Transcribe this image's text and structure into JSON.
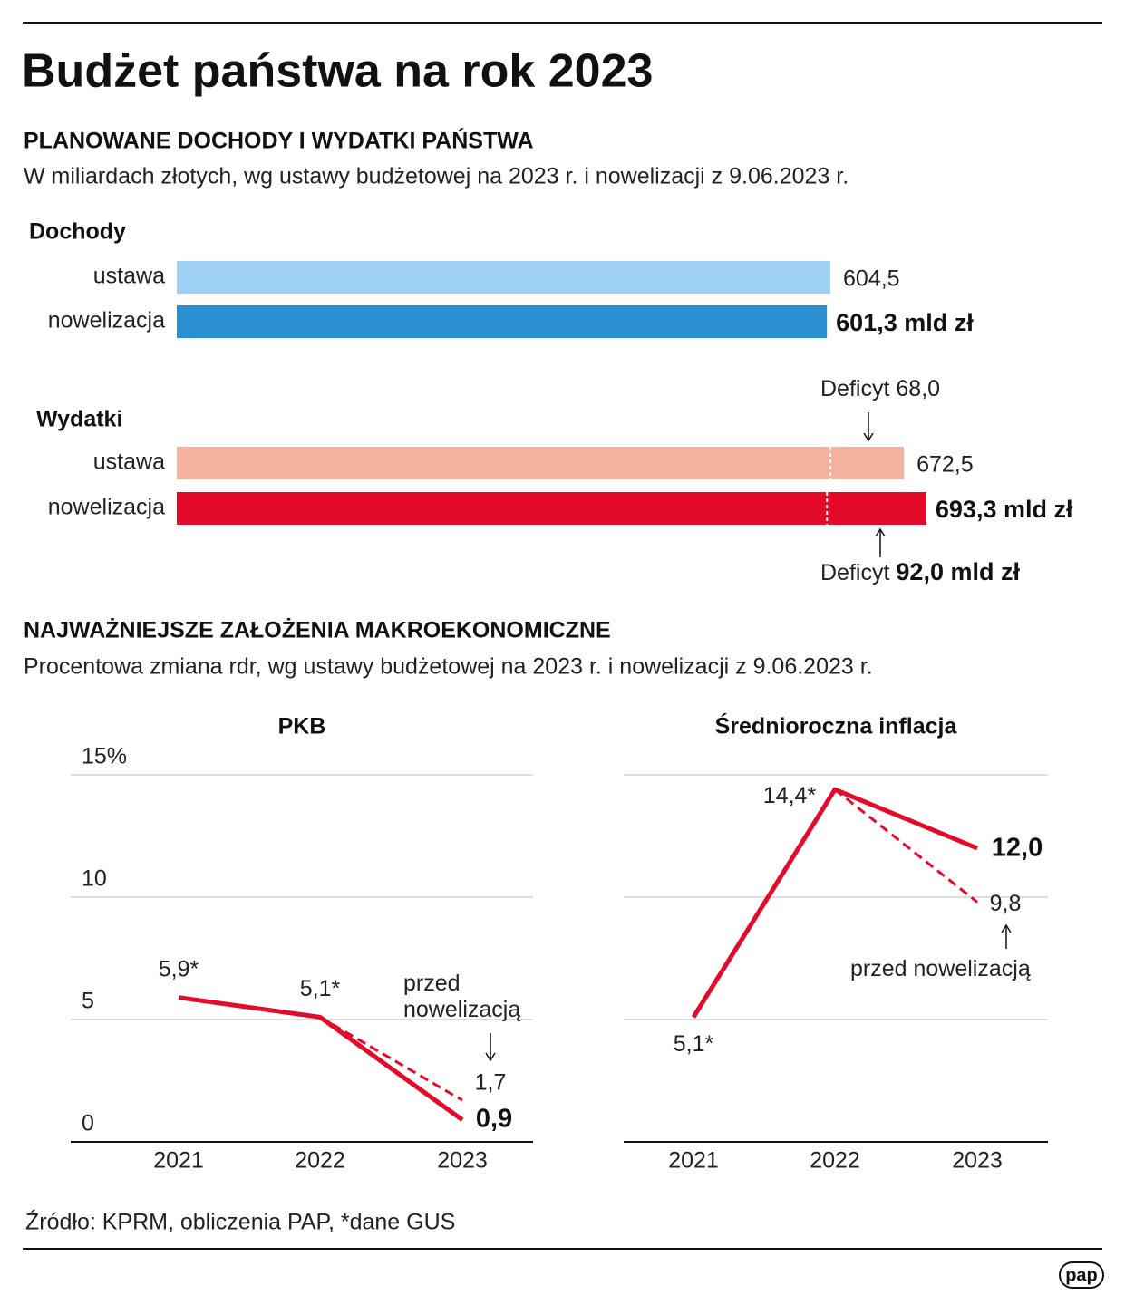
{
  "title": "Budżet państwa na rok 2023",
  "sections": [
    {
      "heading": "PLANOWANE DOCHODY I WYDATKI PAŃSTWA",
      "subtitle": "W miliardach złotych, wg ustawy budżetowej na 2023 r. i nowelizacji z 9.06.2023 r."
    },
    {
      "heading": "NAJWAŻNIEJSZE ZAŁOŻENIA MAKROEKONOMICZNE",
      "subtitle": "Procentowa zmiana rdr, wg ustawy budżetowej na 2023 r. i nowelizacji z 9.06.2023 r."
    }
  ],
  "source": "Źródło: KPRM, obliczenia PAP, *dane GUS",
  "logo": "pap",
  "chart_data": [
    {
      "type": "hbar",
      "categories": [
        "ustawa",
        "nowelizacja"
      ],
      "series": [
        {
          "name": "Dochody",
          "colors": [
            "#9dd0f2",
            "#2a8fd0"
          ],
          "values": [
            604.5,
            601.3
          ],
          "value_labels": [
            "604,5",
            "601,3 mld zł"
          ]
        },
        {
          "name": "Wydatki",
          "colors": [
            "#f4b3a0",
            "#e30a2a"
          ],
          "values": [
            672.5,
            693.3
          ],
          "value_labels": [
            "672,5",
            "693,3 mld zł"
          ]
        }
      ],
      "deficit": {
        "label": "Deficyt",
        "values": [
          68.0,
          92.0
        ],
        "value_labels": [
          "68,0",
          "92,0 mld zł"
        ]
      }
    },
    {
      "type": "line",
      "title": "PKB",
      "categories": [
        "2021",
        "2022",
        "2023"
      ],
      "ylim": [
        0,
        15
      ],
      "yticks": [
        0,
        5,
        10,
        {
          "value": 15,
          "label": "15%"
        }
      ],
      "show_ytick_labels": true,
      "grid": true,
      "series": [
        {
          "color": "#e30a2a",
          "style": "solid",
          "values": [
            5.9,
            5.1,
            0.9
          ],
          "value_labels": [
            "5,9*",
            "5,1*",
            "0,9"
          ]
        },
        {
          "color": "#e30a2a",
          "style": "dashed",
          "values": [
            null,
            5.1,
            1.7
          ],
          "value_labels": [
            null,
            null,
            "1,7"
          ]
        }
      ],
      "annotation": "przed nowelizacją"
    },
    {
      "type": "line",
      "title": "Średnioroczna inflacja",
      "categories": [
        "2021",
        "2022",
        "2023"
      ],
      "ylim": [
        0,
        15
      ],
      "yticks": [
        0,
        5,
        10,
        {
          "value": 15,
          "label": "15%"
        }
      ],
      "show_ytick_labels": false,
      "grid": true,
      "series": [
        {
          "color": "#e30a2a",
          "style": "solid",
          "values": [
            5.1,
            14.4,
            12.0
          ],
          "value_labels": [
            "5,1*",
            "14,4*",
            "12,0"
          ]
        },
        {
          "color": "#e30a2a",
          "style": "dashed",
          "values": [
            null,
            14.4,
            9.8
          ],
          "value_labels": [
            null,
            null,
            "9,8"
          ]
        }
      ],
      "annotation": "przed nowelizacją"
    }
  ]
}
